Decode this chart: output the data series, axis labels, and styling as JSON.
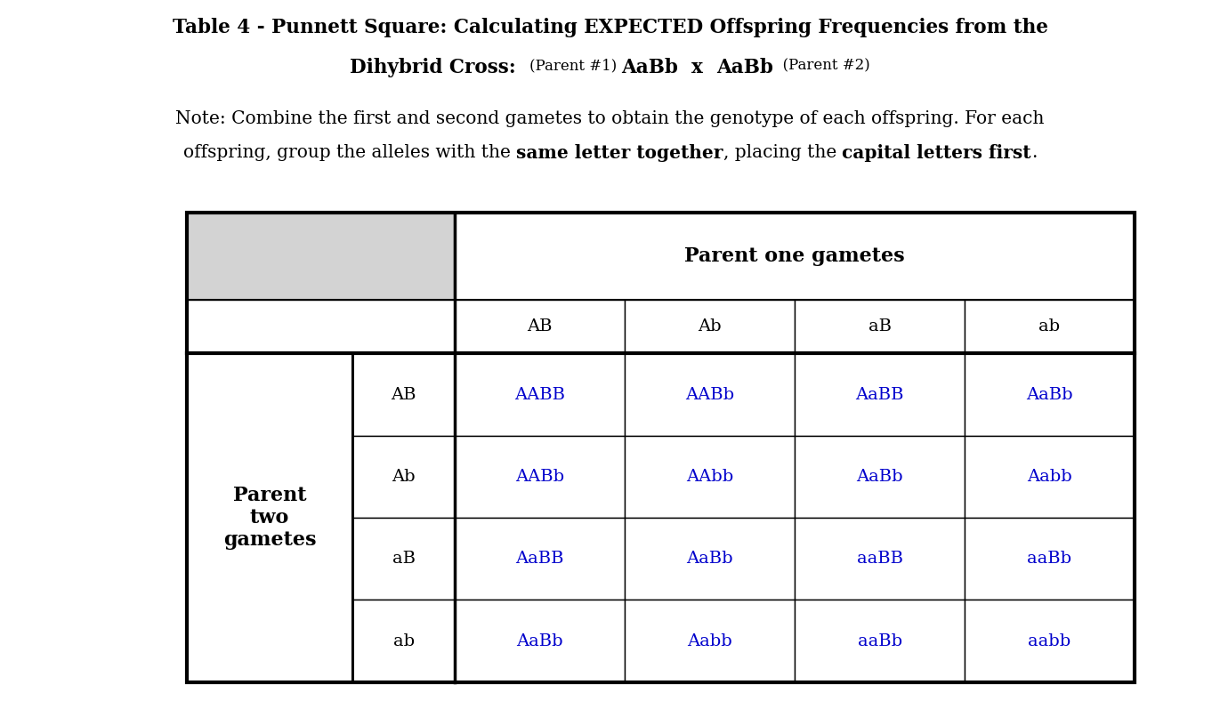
{
  "title_line1": "Table 4 - Punnett Square: Calculating EXPECTED Offspring Frequencies from the",
  "title_line2_bold": "Dihybrid Cross:",
  "title_line2_p1_label": "(Parent #1)",
  "title_line2_p1_gene": "AaBb",
  "title_line2_cross": "  x  ",
  "title_line2_p2_gene": "AaBb",
  "title_line2_p2_label": "(Parent #2)",
  "note_line1": "Note: Combine the first and second gametes to obtain the genotype of each offspring. For each",
  "note_line2_a": "offspring, group the alleles with the ",
  "note_line2_b": "same letter together",
  "note_line2_c": ", placing the ",
  "note_line2_d": "capital letters first",
  "note_line2_e": ".",
  "parent_one_header": "Parent one gametes",
  "parent_two_label": "Parent\ntwo\ngametes",
  "col_headers": [
    "AB",
    "Ab",
    "aB",
    "ab"
  ],
  "row_headers": [
    "AB",
    "Ab",
    "aB",
    "ab"
  ],
  "grid_data": [
    [
      "AABB",
      "AABb",
      "AaBB",
      "AaBb"
    ],
    [
      "AABb",
      "AAbb",
      "AaBb",
      "Aabb"
    ],
    [
      "AaBB",
      "AaBb",
      "aaBB",
      "aaBb"
    ],
    [
      "AaBb",
      "Aabb",
      "aaBb",
      "aabb"
    ]
  ],
  "blue_color": "#0000CC",
  "black_color": "#000000",
  "gray_bg": "#D3D3D3",
  "white_bg": "#FFFFFF",
  "bg_color": "#FFFFFF",
  "title_fontsize": 15.5,
  "note_fontsize": 14.5,
  "table_fontsize": 14,
  "header_fontsize": 15
}
